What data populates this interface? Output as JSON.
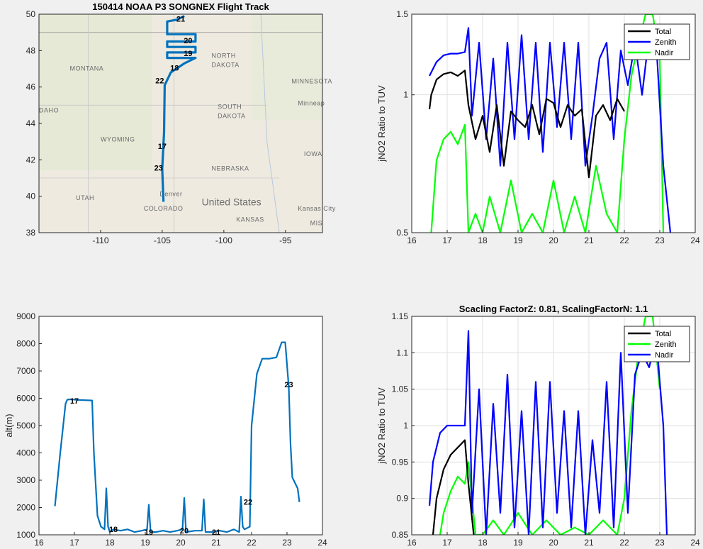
{
  "chart_data": [
    {
      "id": "map",
      "type": "line",
      "title": "150414 NOAA P3 SONGNEX Flight Track",
      "xlabel": "",
      "ylabel": "",
      "xlim": [
        -115,
        -92
      ],
      "ylim": [
        38,
        50
      ],
      "xticks": [
        "-110",
        "-105",
        "-100",
        "-95"
      ],
      "yticks": [
        "38",
        "40",
        "42",
        "44",
        "46",
        "48",
        "50"
      ],
      "color": "#0072bd",
      "track": [
        [
          -104.9,
          39.7
        ],
        [
          -105.0,
          41.5
        ],
        [
          -104.85,
          43.5
        ],
        [
          -104.8,
          46.1
        ],
        [
          -104.3,
          46.8
        ],
        [
          -103.2,
          47.3
        ],
        [
          -102.3,
          47.6
        ],
        [
          -104.6,
          47.6
        ],
        [
          -104.6,
          47.9
        ],
        [
          -102.3,
          47.9
        ],
        [
          -102.3,
          48.2
        ],
        [
          -104.6,
          48.2
        ],
        [
          -104.6,
          48.5
        ],
        [
          -102.3,
          48.5
        ],
        [
          -102.3,
          48.9
        ],
        [
          -104.6,
          48.9
        ],
        [
          -104.6,
          49.6
        ],
        [
          -103.8,
          49.7
        ],
        [
          -103.2,
          49.9
        ]
      ],
      "hour_labels": [
        {
          "text": "21",
          "lon": -103.5,
          "lat": 49.6
        },
        {
          "text": "20",
          "lon": -102.9,
          "lat": 48.4
        },
        {
          "text": "19",
          "lon": -102.9,
          "lat": 47.7
        },
        {
          "text": "18",
          "lon": -104.0,
          "lat": 46.9
        },
        {
          "text": "22",
          "lon": -105.2,
          "lat": 46.2
        },
        {
          "text": "17",
          "lon": -105.0,
          "lat": 42.6
        },
        {
          "text": "23",
          "lon": -105.3,
          "lat": 41.4
        }
      ],
      "place_labels": [
        "MONTANA",
        "NORTH",
        "DAKOTA",
        "MINNESOTA",
        "Minneap",
        "SOUTH",
        "DAKOTA",
        "WYOMING",
        "IOWA",
        "NEBRASKA",
        "United States",
        "Denver",
        "Kansas City",
        "UTAH",
        "COLORADO",
        "KANSAS",
        "MIS",
        "DAHO"
      ]
    },
    {
      "id": "ratio-top",
      "type": "line",
      "title": "",
      "xlabel": "",
      "ylabel": "jNO2 Ratio to TUV",
      "xlim": [
        16,
        24
      ],
      "ylim": [
        0.5,
        1.5
      ],
      "yscale": "log",
      "xticks": [
        "16",
        "17",
        "18",
        "19",
        "20",
        "21",
        "22",
        "23",
        "24"
      ],
      "yticks": [
        "0.5",
        "1",
        "1.5"
      ],
      "legend": {
        "position": "top-right",
        "entries": [
          "Total",
          "Zenith",
          "Nadir"
        ]
      },
      "series": [
        {
          "name": "Total",
          "color": "#000000",
          "x": [
            16.5,
            16.55,
            16.7,
            16.9,
            17.1,
            17.3,
            17.5,
            17.6,
            17.8,
            18.0,
            18.2,
            18.4,
            18.6,
            18.8,
            19.0,
            19.2,
            19.4,
            19.6,
            19.8,
            20.0,
            20.2,
            20.4,
            20.6,
            20.8,
            21.0,
            21.2,
            21.4,
            21.6,
            21.8,
            22.0
          ],
          "y": [
            0.93,
            1.0,
            1.08,
            1.11,
            1.12,
            1.1,
            1.13,
            0.95,
            0.8,
            0.9,
            0.75,
            0.95,
            0.7,
            0.92,
            0.88,
            0.85,
            0.95,
            0.82,
            0.98,
            0.96,
            0.85,
            0.95,
            0.9,
            0.93,
            0.66,
            0.9,
            0.95,
            0.88,
            0.98,
            0.92
          ]
        },
        {
          "name": "Zenith",
          "color": "#0000ff",
          "x": [
            16.5,
            16.7,
            16.9,
            17.1,
            17.3,
            17.5,
            17.6,
            17.7,
            17.9,
            18.1,
            18.3,
            18.5,
            18.7,
            18.9,
            19.1,
            19.3,
            19.5,
            19.7,
            19.9,
            20.1,
            20.3,
            20.5,
            20.7,
            20.9,
            21.1,
            21.3,
            21.5,
            21.7,
            21.9,
            22.1,
            22.3,
            22.5,
            22.7,
            22.9,
            23.1,
            23.3
          ],
          "y": [
            1.1,
            1.18,
            1.22,
            1.23,
            1.23,
            1.24,
            1.4,
            0.9,
            1.3,
            0.8,
            1.2,
            0.7,
            1.3,
            0.8,
            1.35,
            0.8,
            1.3,
            0.75,
            1.3,
            0.85,
            1.3,
            0.8,
            1.3,
            0.7,
            0.9,
            1.2,
            1.3,
            0.8,
            1.25,
            1.05,
            1.3,
            1.0,
            1.35,
            1.3,
            0.7,
            0.5
          ]
        },
        {
          "name": "Nadir",
          "color": "#00ff00",
          "x": [
            16.55,
            16.7,
            16.9,
            17.1,
            17.3,
            17.5,
            17.6,
            17.8,
            18.0,
            18.2,
            18.5,
            18.8,
            19.1,
            19.4,
            19.7,
            20.0,
            20.3,
            20.6,
            20.9,
            21.2,
            21.5,
            21.8,
            22.0,
            22.2,
            22.4,
            22.6,
            22.8,
            23.0,
            23.1
          ],
          "y": [
            0.5,
            0.72,
            0.8,
            0.83,
            0.78,
            0.86,
            0.5,
            0.55,
            0.5,
            0.6,
            0.5,
            0.65,
            0.5,
            0.55,
            0.5,
            0.65,
            0.5,
            0.6,
            0.5,
            0.7,
            0.55,
            0.5,
            0.8,
            1.1,
            1.3,
            1.5,
            1.5,
            1.2,
            0.5
          ]
        }
      ]
    },
    {
      "id": "altitude",
      "type": "line",
      "title": "",
      "xlabel": "",
      "ylabel": "alt(m)",
      "xlim": [
        16,
        24
      ],
      "ylim": [
        1000,
        9000
      ],
      "xticks": [
        "16",
        "17",
        "18",
        "19",
        "20",
        "21",
        "22",
        "23",
        "24"
      ],
      "yticks": [
        "1000",
        "2000",
        "3000",
        "4000",
        "5000",
        "6000",
        "7000",
        "8000",
        "9000"
      ],
      "color": "#0072bd",
      "x": [
        16.45,
        16.6,
        16.75,
        16.8,
        16.9,
        17.1,
        17.3,
        17.5,
        17.55,
        17.65,
        17.75,
        17.85,
        17.9,
        17.95,
        18.0,
        18.1,
        18.3,
        18.5,
        18.7,
        18.9,
        19.05,
        19.1,
        19.15,
        19.3,
        19.5,
        19.7,
        19.9,
        20.05,
        20.1,
        20.15,
        20.4,
        20.6,
        20.65,
        20.7,
        20.9,
        21.1,
        21.3,
        21.5,
        21.65,
        21.7,
        21.75,
        21.8,
        21.95,
        22.0,
        22.15,
        22.3,
        22.5,
        22.7,
        22.85,
        22.95,
        23.05,
        23.1,
        23.15,
        23.3,
        23.35
      ],
      "y": [
        2050,
        4000,
        5800,
        5950,
        5960,
        5940,
        5930,
        5920,
        4000,
        1700,
        1300,
        1200,
        2700,
        1300,
        1100,
        1200,
        1150,
        1200,
        1100,
        1150,
        1200,
        2100,
        1100,
        1100,
        1150,
        1100,
        1150,
        1200,
        2350,
        1100,
        1150,
        1150,
        2300,
        1100,
        1100,
        1150,
        1100,
        1200,
        1100,
        2400,
        1300,
        1200,
        1300,
        5000,
        6900,
        7450,
        7450,
        7500,
        8050,
        8050,
        6400,
        4300,
        3100,
        2700,
        2200
      ],
      "hour_labels": [
        {
          "text": "17",
          "x": 17.0,
          "y": 5800
        },
        {
          "text": "18",
          "x": 18.1,
          "y": 1100
        },
        {
          "text": "19",
          "x": 19.1,
          "y": 1000
        },
        {
          "text": "20",
          "x": 20.1,
          "y": 1050
        },
        {
          "text": "21",
          "x": 21.0,
          "y": 1000
        },
        {
          "text": "22",
          "x": 21.9,
          "y": 2100
        },
        {
          "text": "23",
          "x": 23.05,
          "y": 6400
        }
      ]
    },
    {
      "id": "ratio-scaled",
      "type": "line",
      "title": "Scacling FactorZ: 0.81, ScalingFactorN: 1.1",
      "xlabel": "",
      "ylabel": "jNO2 Ratio to TUV",
      "xlim": [
        16,
        24
      ],
      "ylim": [
        0.85,
        1.15
      ],
      "xticks": [
        "16",
        "17",
        "18",
        "19",
        "20",
        "21",
        "22",
        "23",
        "24"
      ],
      "yticks": [
        "0.85",
        "0.9",
        "0.95",
        "1",
        "1.05",
        "1.1",
        "1.15"
      ],
      "legend": {
        "position": "top-right",
        "entries": [
          "Total",
          "Zenith",
          "Nadir"
        ]
      },
      "series": [
        {
          "name": "Total",
          "color": "#000000",
          "x": [
            16.6,
            16.7,
            16.9,
            17.1,
            17.3,
            17.5,
            17.6,
            17.75
          ],
          "y": [
            0.85,
            0.9,
            0.94,
            0.96,
            0.97,
            0.98,
            0.92,
            0.85
          ]
        },
        {
          "name": "Zenith",
          "color": "#00ff00",
          "x": [
            16.8,
            16.9,
            17.1,
            17.3,
            17.5,
            17.6,
            17.8,
            18.0,
            18.3,
            18.6,
            19.0,
            19.4,
            19.8,
            20.2,
            20.6,
            21.0,
            21.4,
            21.8,
            22.0,
            22.2,
            22.4,
            22.6,
            22.8,
            23.0
          ],
          "y": [
            0.85,
            0.88,
            0.91,
            0.93,
            0.92,
            0.95,
            0.85,
            0.85,
            0.87,
            0.85,
            0.88,
            0.85,
            0.87,
            0.85,
            0.86,
            0.85,
            0.87,
            0.85,
            0.9,
            1.02,
            1.1,
            1.15,
            1.15,
            1.05
          ]
        },
        {
          "name": "Nadir",
          "color": "#0000ff",
          "x": [
            16.5,
            16.6,
            16.8,
            17.0,
            17.2,
            17.4,
            17.5,
            17.6,
            17.7,
            17.9,
            18.1,
            18.3,
            18.5,
            18.7,
            18.9,
            19.1,
            19.3,
            19.5,
            19.7,
            19.9,
            20.1,
            20.3,
            20.5,
            20.7,
            20.9,
            21.1,
            21.3,
            21.5,
            21.7,
            21.9,
            22.1,
            22.3,
            22.5,
            22.7,
            22.9,
            23.1,
            23.2
          ],
          "y": [
            0.89,
            0.95,
            0.99,
            1.0,
            1.0,
            1.0,
            1.0,
            1.13,
            0.88,
            1.05,
            0.85,
            1.03,
            0.88,
            1.07,
            0.86,
            1.02,
            0.85,
            1.06,
            0.86,
            1.06,
            0.88,
            1.02,
            0.86,
            1.02,
            0.85,
            0.98,
            0.88,
            1.06,
            0.86,
            1.1,
            0.88,
            1.07,
            1.1,
            1.08,
            1.12,
            1.0,
            0.85
          ]
        }
      ]
    }
  ]
}
